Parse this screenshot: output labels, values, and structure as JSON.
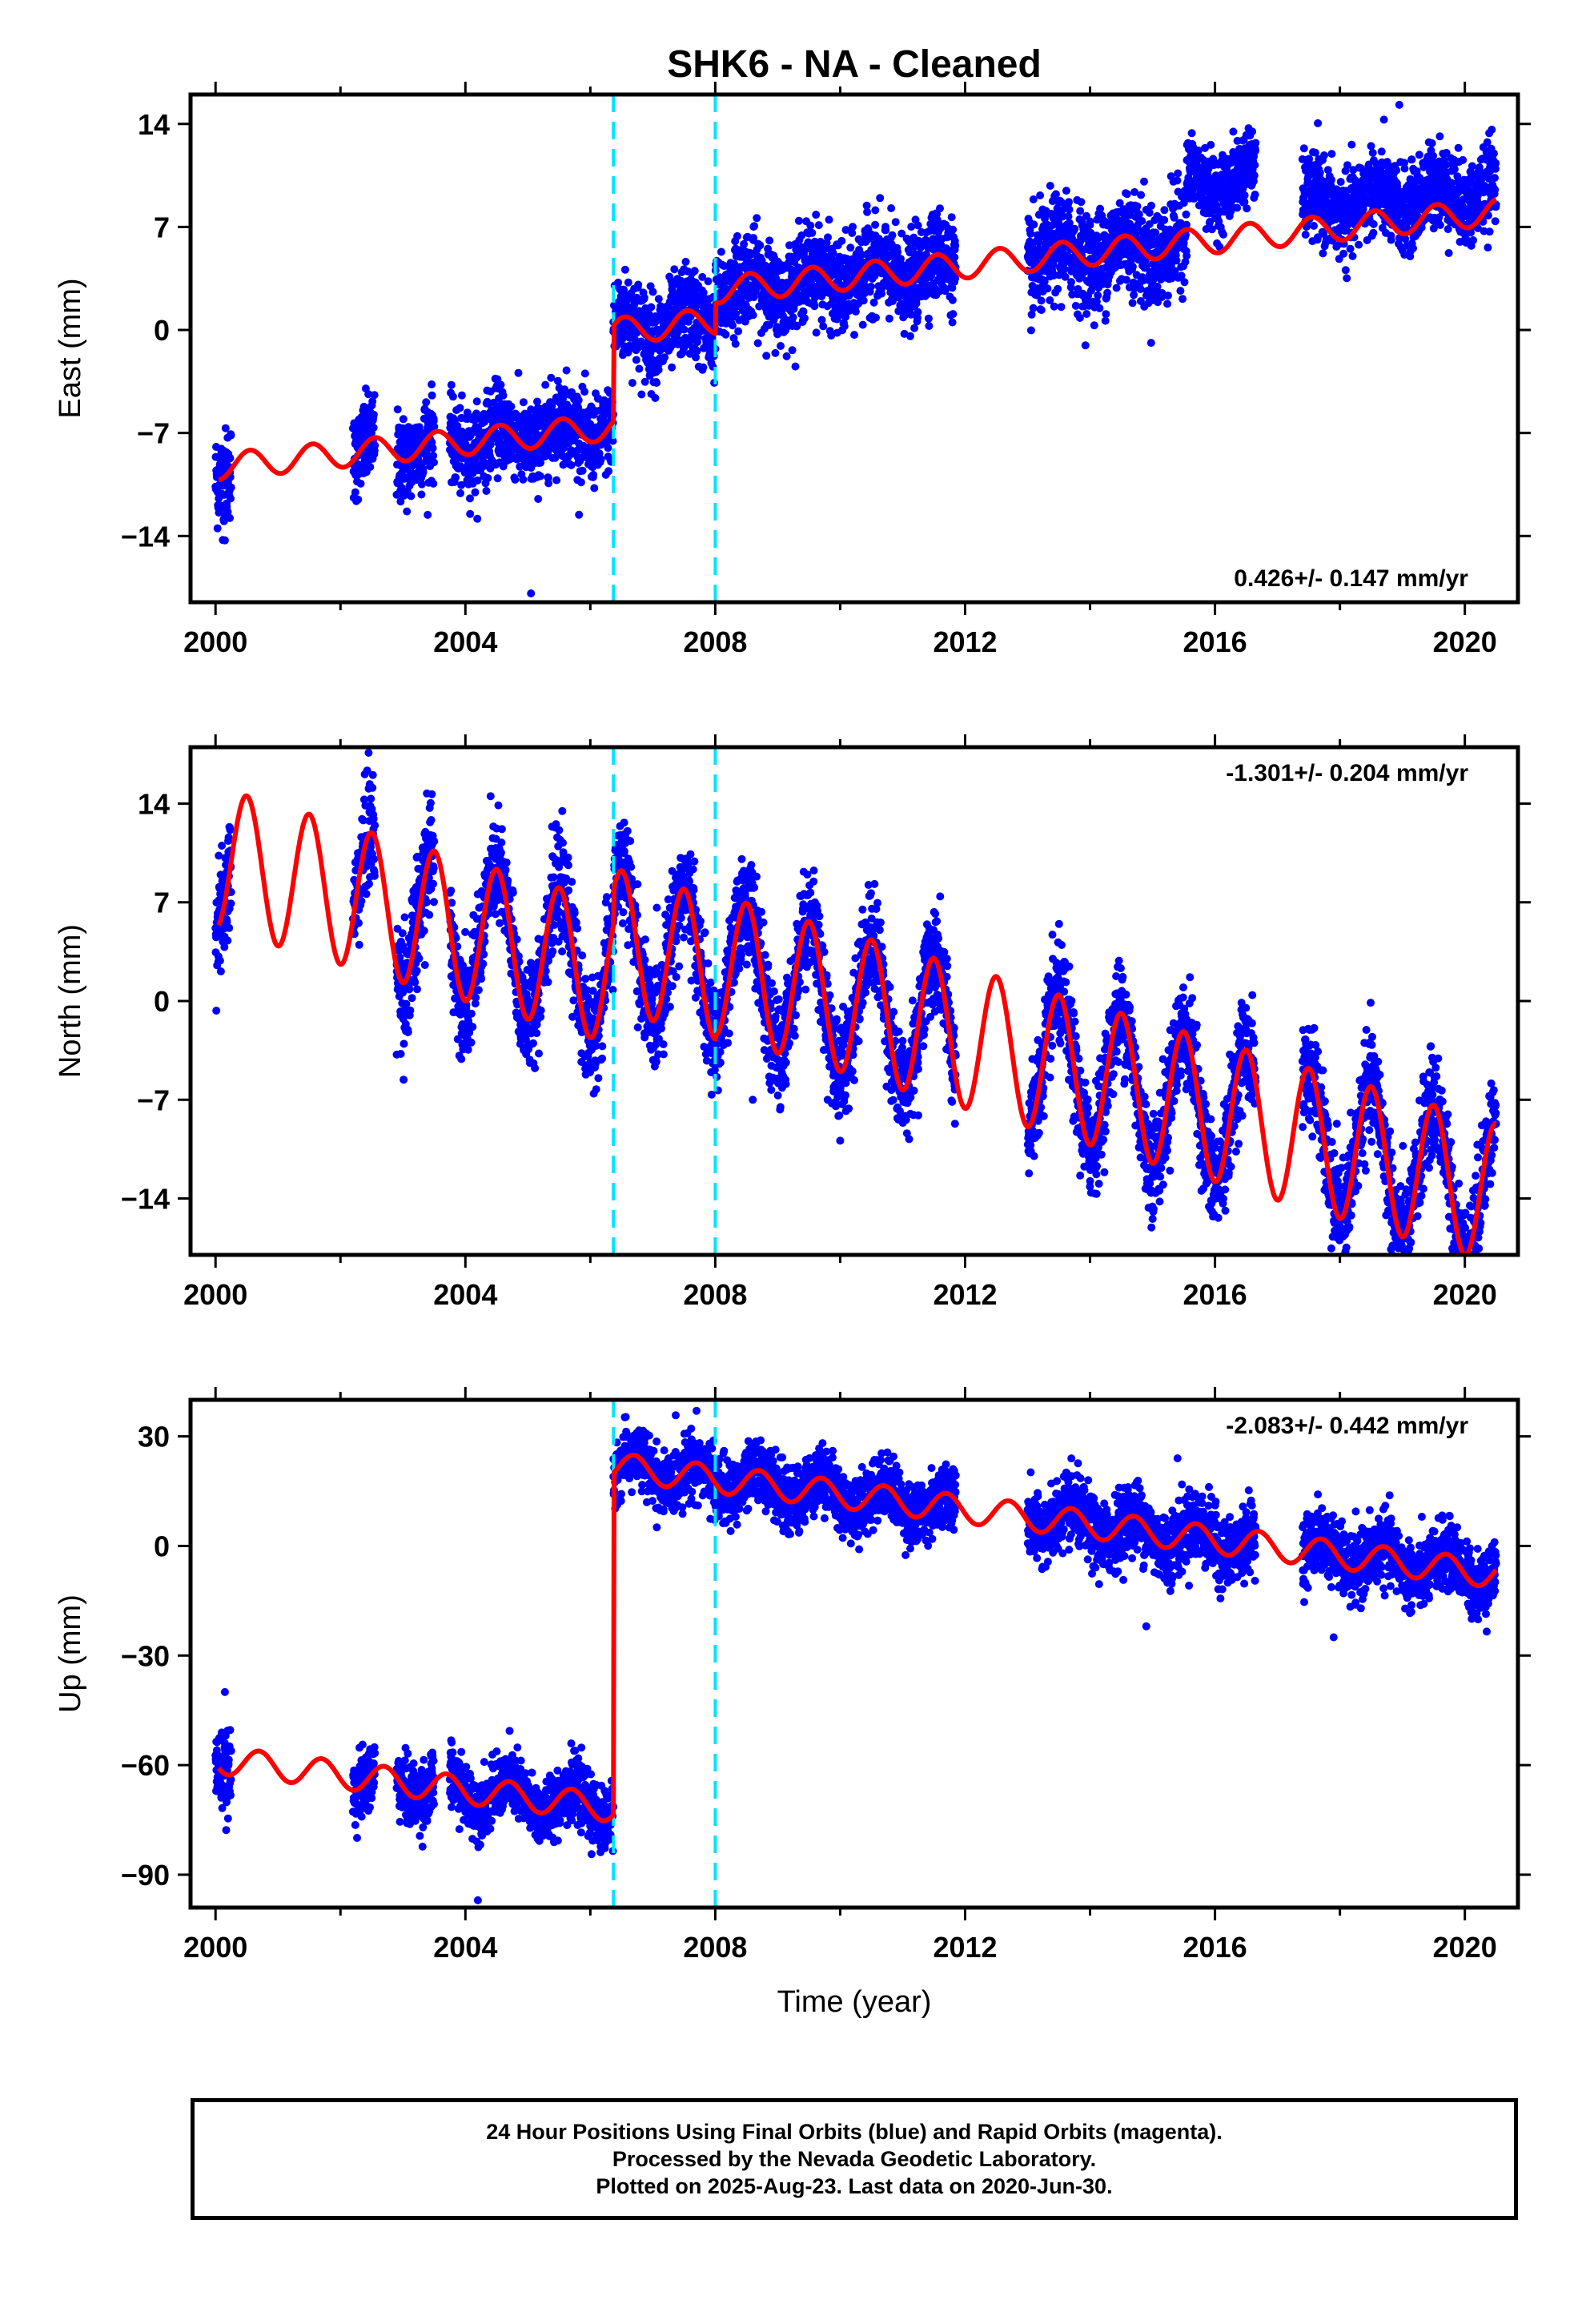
{
  "title": "SHK6  - NA - Cleaned",
  "xlabel": "Time (year)",
  "colors": {
    "data": "#0000ff",
    "model": "#ff0000",
    "offset": "#00e5ff",
    "axis": "#000000"
  },
  "footer": {
    "line1": "24 Hour Positions Using Final Orbits (blue) and Rapid Orbits (magenta).",
    "line2": "Processed by the Nevada Geodetic Laboratory.",
    "line3": "Plotted on 2025-Aug-23. Last data on 2020-Jun-30."
  },
  "chart_data": [
    {
      "type": "scatter",
      "ylabel": "East (mm)",
      "rate_label": "0.426+/- 0.147 mm/yr",
      "rate_position": "bottom-right",
      "xlim": [
        1999.6,
        2020.85
      ],
      "ylim": [
        -18.5,
        16
      ],
      "xticks": [
        2000,
        2004,
        2008,
        2012,
        2016,
        2020
      ],
      "yticks": [
        14,
        7,
        0,
        -7,
        -14
      ],
      "offsets": [
        2006.37,
        2008.0
      ],
      "model": {
        "segments": [
          {
            "start": 2000.05,
            "end": 2006.37,
            "intercept": -9.3,
            "slope": 0.426
          },
          {
            "start": 2006.37,
            "end": 2008.0,
            "intercept": -2.8,
            "slope": 0.426
          },
          {
            "start": 2008.0,
            "end": 2020.5,
            "intercept": -0.7,
            "slope": 0.426
          }
        ],
        "seasonal_amplitude": 0.9,
        "seasonal_phase": 2000.3
      },
      "data_ranges": [
        {
          "start": 2000.0,
          "end": 2000.25,
          "scatter": 1.6,
          "offset": 0
        },
        {
          "start": 2002.2,
          "end": 2002.55,
          "scatter": 1.5,
          "offset": 0
        },
        {
          "start": 2002.9,
          "end": 2003.5,
          "scatter": 1.5,
          "offset": 0
        },
        {
          "start": 2003.75,
          "end": 2006.37,
          "scatter": 1.4,
          "offset": 0
        },
        {
          "start": 2006.37,
          "end": 2011.85,
          "scatter": 1.5,
          "offset": 0
        },
        {
          "start": 2013.0,
          "end": 2015.55,
          "scatter": 1.7,
          "offset": 0
        },
        {
          "start": 2015.55,
          "end": 2016.65,
          "scatter": 1.2,
          "offset": 4.0
        },
        {
          "start": 2017.4,
          "end": 2020.5,
          "scatter": 1.4,
          "offset": 1.5
        }
      ],
      "outliers": [
        [
          2005.05,
          -17.9
        ],
        [
          2000.15,
          -14.3
        ],
        [
          2018.95,
          15.3
        ],
        [
          2017.6,
          11.2
        ],
        [
          2015.6,
          11.5
        ]
      ]
    },
    {
      "type": "scatter",
      "ylabel": "North (mm)",
      "rate_label": "-1.301+/- 0.204 mm/yr",
      "rate_position": "top-right",
      "xlim": [
        1999.6,
        2020.85
      ],
      "ylim": [
        -18,
        18
      ],
      "xticks": [
        2000,
        2004,
        2008,
        2012,
        2016,
        2020
      ],
      "yticks": [
        14,
        7,
        0,
        -7,
        -14
      ],
      "offsets": [
        2006.37,
        2008.0
      ],
      "model": {
        "segments": [
          {
            "start": 2000.05,
            "end": 2006.37,
            "intercept": 10.2,
            "slope": -1.301
          },
          {
            "start": 2006.37,
            "end": 2008.0,
            "intercept": 12.7,
            "slope": -1.301
          },
          {
            "start": 2008.0,
            "end": 2020.5,
            "intercept": 13.0,
            "slope": -1.301
          }
        ],
        "seasonal_amplitude": 5.0,
        "seasonal_phase": 2000.25
      },
      "data_ranges": [
        {
          "start": 2000.0,
          "end": 2000.25,
          "scatter": 2.0,
          "offset": 0
        },
        {
          "start": 2002.2,
          "end": 2002.55,
          "scatter": 2.0,
          "offset": 0
        },
        {
          "start": 2002.9,
          "end": 2003.5,
          "scatter": 2.2,
          "offset": 0
        },
        {
          "start": 2003.75,
          "end": 2011.85,
          "scatter": 1.8,
          "offset": 0
        },
        {
          "start": 2013.0,
          "end": 2016.65,
          "scatter": 1.8,
          "offset": 0
        },
        {
          "start": 2017.4,
          "end": 2020.5,
          "scatter": 1.8,
          "offset": 0
        }
      ],
      "outliers": [
        [
          2002.45,
          17.6
        ],
        [
          2002.9,
          -3.8
        ],
        [
          2008.6,
          -7.0
        ],
        [
          2009.8,
          -7.0
        ],
        [
          2011.25,
          -8.1
        ],
        [
          2014.1,
          -11.8
        ],
        [
          2018.95,
          -17.0
        ],
        [
          2019.95,
          -17.2
        ]
      ]
    },
    {
      "type": "scatter",
      "ylabel": "Up (mm)",
      "rate_label": "-2.083+/- 0.442 mm/yr",
      "rate_position": "top-right",
      "xlim": [
        1999.6,
        2020.85
      ],
      "ylim": [
        -99,
        40
      ],
      "xticks": [
        2000,
        2004,
        2008,
        2012,
        2016,
        2020
      ],
      "yticks": [
        30,
        0,
        -30,
        -60,
        -90
      ],
      "offsets": [
        2006.37,
        2008.0
      ],
      "model": {
        "segments": [
          {
            "start": 2000.05,
            "end": 2006.37,
            "intercept": -58.5,
            "slope": -2.083
          },
          {
            "start": 2006.37,
            "end": 2020.5,
            "intercept": 35.0,
            "slope": -2.083
          }
        ],
        "seasonal_amplitude": 3.8,
        "seasonal_phase": 2000.45
      },
      "data_ranges": [
        {
          "start": 2000.0,
          "end": 2000.25,
          "scatter": 5.0,
          "offset": 0
        },
        {
          "start": 2002.2,
          "end": 2002.55,
          "scatter": 4.5,
          "offset": 0
        },
        {
          "start": 2002.9,
          "end": 2003.5,
          "scatter": 4.5,
          "offset": 0
        },
        {
          "start": 2003.75,
          "end": 2006.37,
          "scatter": 4.2,
          "offset": 0
        },
        {
          "start": 2006.37,
          "end": 2011.85,
          "scatter": 4.2,
          "offset": 0
        },
        {
          "start": 2013.0,
          "end": 2016.65,
          "scatter": 4.8,
          "offset": 0
        },
        {
          "start": 2017.4,
          "end": 2020.5,
          "scatter": 4.5,
          "offset": 0
        }
      ],
      "outliers": [
        [
          2000.15,
          -40.0
        ],
        [
          2004.2,
          -97.0
        ],
        [
          2007.7,
          37.0
        ],
        [
          2015.4,
          24.0
        ],
        [
          2014.9,
          -22.0
        ],
        [
          2017.9,
          -25.0
        ]
      ]
    }
  ]
}
